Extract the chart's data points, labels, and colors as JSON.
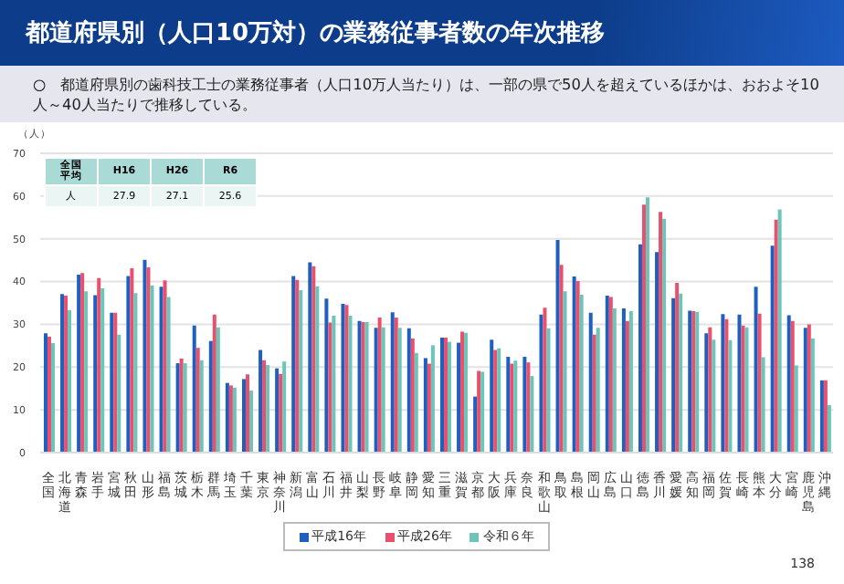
{
  "chart_data": {
    "type": "bar",
    "title": "都道府県別（人口10万対）の業務従事者数の年次推移",
    "subtitle": "○　都道府県別の歯科技工士の業務従事者（人口10万人当たり）は、一部の県で50人を超えているほかは、おおよそ10人～40人当たりで推移している。",
    "ylabel": "（人）",
    "categories": [
      "全国",
      "北海道",
      "青森",
      "岩手",
      "宮城",
      "秋田",
      "山形",
      "福島",
      "茨城",
      "栃木",
      "群馬",
      "埼玉",
      "千葉",
      "東京",
      "神奈川",
      "新潟",
      "富山",
      "石川",
      "福井",
      "山梨",
      "長野",
      "岐阜",
      "静岡",
      "愛知",
      "三重",
      "滋賀",
      "京都",
      "大阪",
      "兵庫",
      "奈良",
      "和歌山",
      "鳥取",
      "島根",
      "岡山",
      "広島",
      "山口",
      "徳島",
      "香川",
      "愛媛",
      "高知",
      "福岡",
      "佐賀",
      "長崎",
      "熊本",
      "大分",
      "宮崎",
      "鹿児島",
      "沖縄"
    ],
    "series": [
      {
        "name": "平成16年",
        "color": "#1f5fbf",
        "values": [
          27.9,
          37.1,
          41.6,
          36.8,
          32.7,
          41.3,
          45.1,
          38.8,
          20.9,
          29.7,
          26.1,
          16.3,
          17.2,
          24.0,
          19.7,
          41.3,
          44.5,
          36.0,
          34.8,
          30.8,
          29.2,
          32.8,
          29.1,
          22.1,
          26.9,
          25.7,
          13.1,
          26.4,
          22.4,
          22.4,
          32.3,
          49.7,
          41.2,
          32.7,
          36.7,
          33.7,
          48.7,
          46.9,
          36.1,
          33.2,
          27.9,
          32.4,
          32.3,
          38.8,
          48.4,
          32.1,
          29.2,
          16.9
        ]
      },
      {
        "name": "平成26年",
        "color": "#e8506e",
        "values": [
          27.1,
          36.7,
          42.0,
          40.8,
          32.7,
          43.1,
          43.3,
          40.3,
          22.0,
          24.5,
          32.3,
          15.7,
          18.3,
          21.6,
          18.4,
          40.4,
          43.6,
          30.4,
          34.5,
          30.5,
          31.6,
          31.6,
          26.7,
          20.8,
          26.9,
          28.3,
          19.1,
          24.0,
          20.8,
          21.1,
          33.9,
          43.9,
          40.1,
          27.6,
          36.4,
          30.8,
          58.0,
          56.3,
          39.7,
          33.1,
          29.3,
          31.2,
          29.7,
          32.5,
          54.5,
          30.8,
          30.0,
          16.9
        ]
      },
      {
        "name": "令和６年",
        "color": "#6cc5b8",
        "values": [
          25.6,
          33.3,
          37.7,
          38.4,
          27.6,
          37.3,
          39.1,
          36.4,
          20.9,
          21.6,
          29.3,
          15.2,
          14.5,
          20.5,
          21.3,
          38.0,
          38.9,
          32.0,
          32.0,
          30.5,
          29.3,
          29.2,
          23.3,
          25.1,
          25.9,
          28.0,
          18.9,
          24.4,
          21.5,
          17.9,
          29.1,
          37.7,
          36.9,
          29.2,
          33.7,
          33.1,
          59.7,
          54.7,
          37.2,
          32.9,
          26.4,
          26.3,
          29.3,
          22.3,
          56.9,
          20.4,
          26.7,
          11.1
        ]
      }
    ],
    "ylim": [
      0,
      70
    ],
    "yticks": [
      0,
      10,
      20,
      30,
      40,
      50,
      60,
      70
    ],
    "grid": "y",
    "legend": "bottom",
    "annotations": [
      "全国平均",
      "H16",
      "H26",
      "R6",
      "人",
      "27.9",
      "27.1",
      "25.6",
      "138"
    ]
  }
}
